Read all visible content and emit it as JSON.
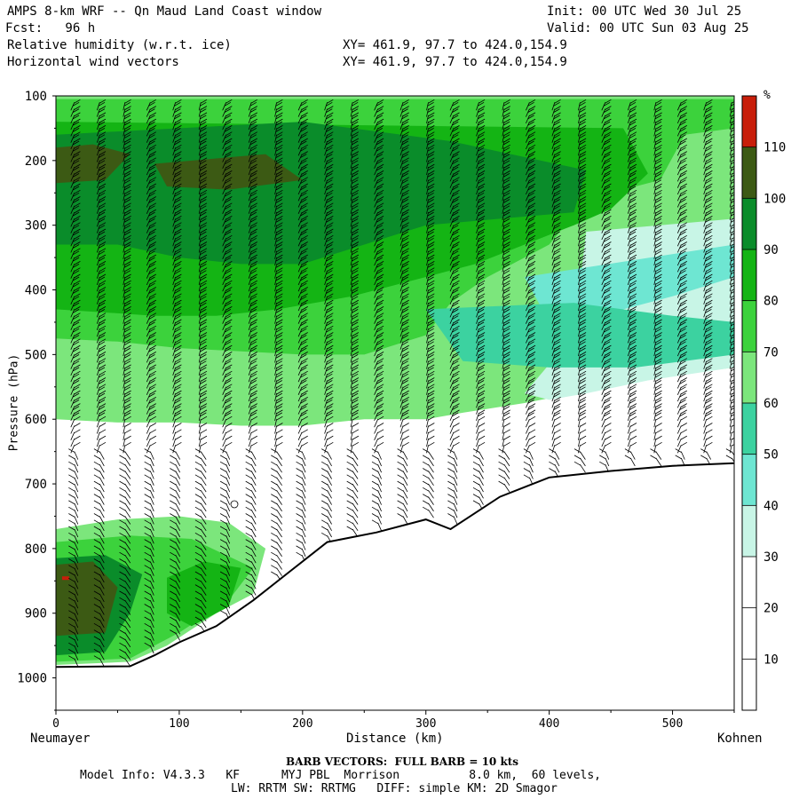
{
  "header": {
    "title": "AMPS 8-km WRF -- Qn Maud Land Coast window",
    "init": "Init: 00 UTC Wed 30 Jul 25",
    "fcst": "Fcst:   96 h",
    "valid": "Valid: 00 UTC Sun 03 Aug 25",
    "field1": "Relative humidity (w.r.t. ice)",
    "xy1": "XY= 461.9, 97.7 to 424.0,154.9",
    "field2": "Horizontal wind vectors",
    "xy2": "XY= 461.9, 97.7 to 424.0,154.9"
  },
  "footer": {
    "barb": "BARB VECTORS:  FULL BARB = 10 kts",
    "model": "Model Info: V4.3.3   KF      MYJ PBL  Morrison          8.0 km,  60 levels,",
    "physics": "LW: RRTM SW: RRTMG   DIFF: simple KM: 2D Smagor"
  },
  "colors": {
    "band_0_10": "#ffffff",
    "band_30_40": "#c8f5e6",
    "band_40_50": "#6ee6d2",
    "band_50_60": "#3cd2a0",
    "band_60_70": "#7ce67c",
    "band_70_80": "#3cd23c",
    "band_80_90": "#14b414",
    "band_90_100": "#0a8c2a",
    "band_100_110": "#3c5a14",
    "band_110": "#c81e0a",
    "terrain_line": "#000000"
  },
  "chart_data": {
    "type": "heatmap",
    "title": "",
    "xlabel": "Distance (km)",
    "ylabel": "Pressure (hPa)",
    "xlim": [
      0,
      550
    ],
    "ylim": [
      1050,
      100
    ],
    "x_ticks": [
      0,
      100,
      200,
      300,
      400,
      500
    ],
    "y_ticks": [
      100,
      200,
      300,
      400,
      500,
      600,
      700,
      800,
      900,
      1000
    ],
    "x_start_label": "Neumayer",
    "x_end_label": "Kohnen",
    "colorbar": {
      "unit": "%",
      "ticks": [
        10,
        20,
        30,
        40,
        50,
        60,
        70,
        80,
        90,
        100,
        110
      ],
      "band_colors": [
        "#ffffff",
        "#ffffff",
        "#ffffff",
        "#c8f5e6",
        "#6ee6d2",
        "#3cd2a0",
        "#7ce67c",
        "#3cd23c",
        "#14b414",
        "#0a8c2a",
        "#3c5a14",
        "#c81e0a"
      ]
    },
    "terrain_surface": {
      "x": [
        0,
        60,
        80,
        100,
        130,
        160,
        190,
        220,
        260,
        300,
        320,
        340,
        360,
        380,
        400,
        450,
        500,
        550
      ],
      "p": [
        983,
        982,
        965,
        945,
        920,
        880,
        835,
        790,
        775,
        755,
        770,
        745,
        720,
        705,
        690,
        680,
        672,
        668
      ]
    },
    "rh_regions": [
      {
        "band": "60-70",
        "points": [
          [
            0,
            100
          ],
          [
            550,
            100
          ],
          [
            550,
            520
          ],
          [
            470,
            540
          ],
          [
            420,
            560
          ],
          [
            380,
            575
          ],
          [
            330,
            590
          ],
          [
            300,
            600
          ],
          [
            250,
            600
          ],
          [
            200,
            610
          ],
          [
            150,
            610
          ],
          [
            100,
            605
          ],
          [
            50,
            605
          ],
          [
            0,
            600
          ]
        ]
      },
      {
        "band": "70-80",
        "points": [
          [
            0,
            105
          ],
          [
            550,
            105
          ],
          [
            550,
            150
          ],
          [
            510,
            160
          ],
          [
            490,
            230
          ],
          [
            430,
            260
          ],
          [
            400,
            330
          ],
          [
            350,
            380
          ],
          [
            320,
            420
          ],
          [
            300,
            470
          ],
          [
            250,
            500
          ],
          [
            200,
            500
          ],
          [
            150,
            495
          ],
          [
            100,
            490
          ],
          [
            50,
            480
          ],
          [
            0,
            475
          ]
        ]
      },
      {
        "band": "80-90",
        "points": [
          [
            0,
            140
          ],
          [
            460,
            150
          ],
          [
            480,
            220
          ],
          [
            450,
            275
          ],
          [
            420,
            300
          ],
          [
            380,
            330
          ],
          [
            340,
            360
          ],
          [
            300,
            380
          ],
          [
            240,
            410
          ],
          [
            180,
            430
          ],
          [
            130,
            440
          ],
          [
            80,
            440
          ],
          [
            40,
            435
          ],
          [
            0,
            430
          ]
        ]
      },
      {
        "band": "90-100",
        "points": [
          [
            0,
            160
          ],
          [
            200,
            140
          ],
          [
            320,
            170
          ],
          [
            430,
            215
          ],
          [
            420,
            280
          ],
          [
            360,
            290
          ],
          [
            300,
            300
          ],
          [
            250,
            330
          ],
          [
            200,
            360
          ],
          [
            150,
            360
          ],
          [
            100,
            350
          ],
          [
            50,
            330
          ],
          [
            0,
            330
          ]
        ]
      },
      {
        "band": "100-110",
        "points": [
          [
            0,
            180
          ],
          [
            30,
            175
          ],
          [
            60,
            190
          ],
          [
            40,
            230
          ],
          [
            0,
            235
          ]
        ]
      },
      {
        "band": "100-110",
        "points": [
          [
            80,
            205
          ],
          [
            170,
            190
          ],
          [
            200,
            230
          ],
          [
            140,
            245
          ],
          [
            90,
            240
          ]
        ]
      },
      {
        "band": "30-40",
        "points": [
          [
            430,
            310
          ],
          [
            550,
            290
          ],
          [
            550,
            520
          ],
          [
            480,
            540
          ],
          [
            430,
            560
          ],
          [
            400,
            570
          ],
          [
            380,
            560
          ],
          [
            420,
            470
          ]
        ]
      },
      {
        "band": "40-50",
        "points": [
          [
            380,
            380
          ],
          [
            550,
            330
          ],
          [
            550,
            380
          ],
          [
            500,
            410
          ],
          [
            440,
            440
          ],
          [
            400,
            450
          ]
        ]
      },
      {
        "band": "50-60",
        "points": [
          [
            300,
            430
          ],
          [
            420,
            420
          ],
          [
            500,
            440
          ],
          [
            550,
            450
          ],
          [
            550,
            500
          ],
          [
            470,
            520
          ],
          [
            400,
            520
          ],
          [
            330,
            510
          ]
        ]
      },
      {
        "band": "60-70",
        "points": [
          [
            0,
            770
          ],
          [
            50,
            755
          ],
          [
            100,
            750
          ],
          [
            140,
            760
          ],
          [
            170,
            800
          ],
          [
            160,
            870
          ],
          [
            130,
            900
          ],
          [
            90,
            950
          ],
          [
            60,
            975
          ],
          [
            0,
            980
          ]
        ]
      },
      {
        "band": "70-80",
        "points": [
          [
            0,
            790
          ],
          [
            60,
            780
          ],
          [
            110,
            785
          ],
          [
            160,
            830
          ],
          [
            140,
            880
          ],
          [
            100,
            930
          ],
          [
            60,
            970
          ],
          [
            0,
            975
          ]
        ]
      },
      {
        "band": "90-100",
        "points": [
          [
            0,
            815
          ],
          [
            40,
            810
          ],
          [
            70,
            840
          ],
          [
            60,
            900
          ],
          [
            40,
            960
          ],
          [
            0,
            965
          ]
        ]
      },
      {
        "band": "100-110",
        "points": [
          [
            0,
            825
          ],
          [
            30,
            820
          ],
          [
            50,
            860
          ],
          [
            40,
            930
          ],
          [
            0,
            935
          ]
        ]
      },
      {
        "band": "80-90",
        "points": [
          [
            90,
            845
          ],
          [
            120,
            820
          ],
          [
            150,
            830
          ],
          [
            140,
            890
          ],
          [
            110,
            920
          ],
          [
            90,
            900
          ]
        ]
      }
    ]
  }
}
